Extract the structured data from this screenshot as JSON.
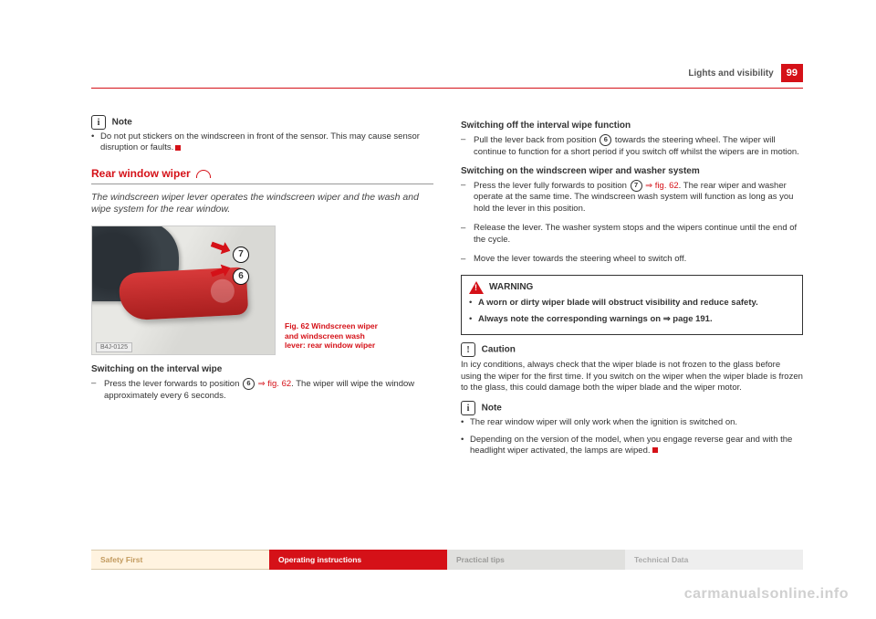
{
  "header": {
    "section": "Lights and visibility",
    "page": "99"
  },
  "left": {
    "note_label": "Note",
    "note_bullet": "Do not put stickers on the windscreen in front of the sensor. This may cause sensor disruption or faults.",
    "section_title": "Rear window wiper",
    "intro": "The windscreen wiper lever operates the windscreen wiper and the wash and wipe system for the rear window.",
    "fig": {
      "ref7": "7",
      "ref6": "6",
      "footer": "B4J-0125",
      "caption": "Fig. 62  Windscreen wiper and windscreen wash lever: rear window wiper"
    },
    "sub1": "Switching on the interval wipe",
    "step1a": "Press the lever forwards to position ",
    "ref6": "6",
    "step1b_ref": " ⇒ fig. 62",
    "step1c": ". The wiper will wipe the window approximately every 6 seconds."
  },
  "right": {
    "sub1": "Switching off the interval wipe function",
    "s1a": "Pull the lever back from position ",
    "ref6": "6",
    "s1b": " towards the steering wheel. The wiper will continue to function for a short period if you switch off whilst the wipers are in motion.",
    "sub2": "Switching on the windscreen wiper and washer system",
    "s2a": "Press the lever fully forwards to position ",
    "ref7": "7",
    "s2b_ref": " ⇒ fig. 62",
    "s2c": ". The rear wiper and washer operate at the same time. The windscreen wash system will function as long as you hold the lever in this position.",
    "s3": "Release the lever. The washer system stops and the wipers continue until the end of the cycle.",
    "s4": "Move the lever towards the steering wheel to switch off.",
    "warn_label": "WARNING",
    "w1": "A worn or dirty wiper blade will obstruct visibility and reduce safety.",
    "w2a": "Always note the corresponding warnings on ",
    "w2b": "⇒ page 191.",
    "caution_label": "Caution",
    "caution_text": "In icy conditions, always check that the wiper blade is not frozen to the glass before using the wiper for the first time. If you switch on the wiper when the wiper blade is frozen to the glass, this could damage both the wiper blade and the wiper motor.",
    "note_label": "Note",
    "n1": "The rear window wiper will only work when the ignition is switched on.",
    "n2": "Depending on the version of the model, when you engage reverse gear and with the headlight wiper activated, the lamps are wiped."
  },
  "tabs": {
    "t1": "Safety First",
    "t2": "Operating instructions",
    "t3": "Practical tips",
    "t4": "Technical Data"
  },
  "watermark": "carmanualsonline.info"
}
